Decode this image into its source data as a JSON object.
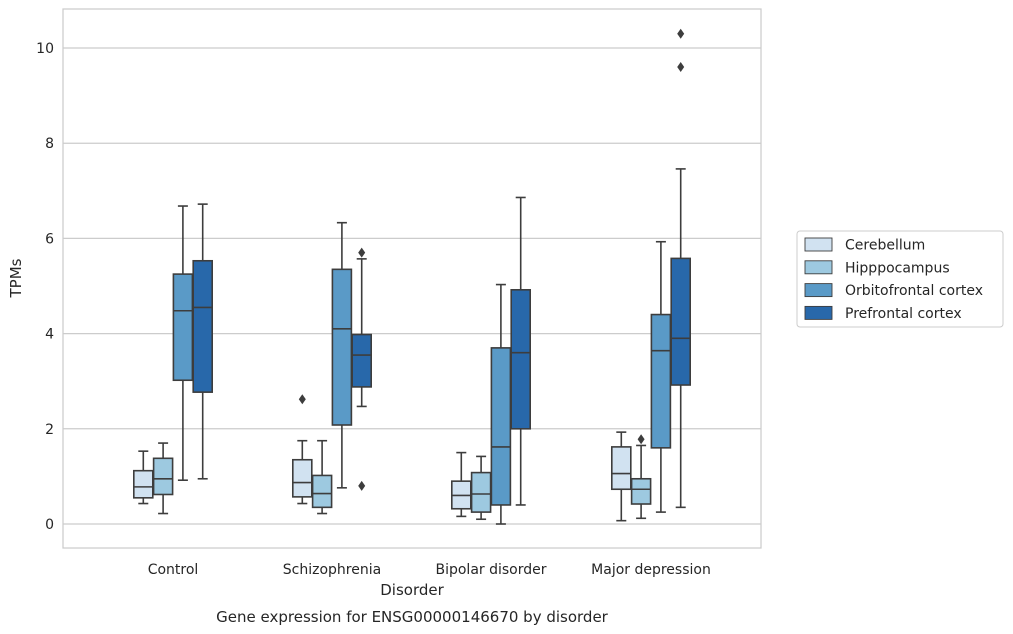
{
  "caption": "Gene expression for ENSG00000146670 by disorder",
  "chart_data": {
    "type": "box",
    "title": "",
    "xlabel": "Disorder",
    "ylabel": "TPMs",
    "ylim": [
      -0.5,
      10.8
    ],
    "yticks": [
      "0",
      "2",
      "4",
      "6",
      "8",
      "10"
    ],
    "grid": "horizontal",
    "legend_position": "right",
    "categories": [
      "Control",
      "Schizophrenia",
      "Bipolar disorder",
      "Major depression"
    ],
    "series": [
      {
        "name": "Cerebellum",
        "color": "#d1e2f1",
        "boxes": [
          {
            "whislo": 0.43,
            "q1": 0.55,
            "med": 0.78,
            "q3": 1.12,
            "whishi": 1.53,
            "fliers": []
          },
          {
            "whislo": 0.43,
            "q1": 0.57,
            "med": 0.87,
            "q3": 1.35,
            "whishi": 1.75,
            "fliers": [
              2.62
            ]
          },
          {
            "whislo": 0.16,
            "q1": 0.32,
            "med": 0.6,
            "q3": 0.9,
            "whishi": 1.5,
            "fliers": []
          },
          {
            "whislo": 0.07,
            "q1": 0.73,
            "med": 1.06,
            "q3": 1.62,
            "whishi": 1.93,
            "fliers": []
          }
        ]
      },
      {
        "name": "Hipppocampus",
        "color": "#9dc9e0",
        "boxes": [
          {
            "whislo": 0.22,
            "q1": 0.62,
            "med": 0.95,
            "q3": 1.38,
            "whishi": 1.7,
            "fliers": []
          },
          {
            "whislo": 0.22,
            "q1": 0.35,
            "med": 0.64,
            "q3": 1.02,
            "whishi": 1.75,
            "fliers": []
          },
          {
            "whislo": 0.1,
            "q1": 0.25,
            "med": 0.63,
            "q3": 1.08,
            "whishi": 1.42,
            "fliers": []
          },
          {
            "whislo": 0.12,
            "q1": 0.42,
            "med": 0.73,
            "q3": 0.95,
            "whishi": 1.65,
            "fliers": [
              1.78
            ]
          }
        ]
      },
      {
        "name": "Orbitofrontal cortex",
        "color": "#5a9ac7",
        "boxes": [
          {
            "whislo": 0.92,
            "q1": 3.02,
            "med": 4.48,
            "q3": 5.25,
            "whishi": 6.68,
            "fliers": []
          },
          {
            "whislo": 0.76,
            "q1": 2.08,
            "med": 4.1,
            "q3": 5.35,
            "whishi": 6.33,
            "fliers": []
          },
          {
            "whislo": 0.0,
            "q1": 0.4,
            "med": 1.62,
            "q3": 3.7,
            "whishi": 5.03,
            "fliers": []
          },
          {
            "whislo": 0.25,
            "q1": 1.6,
            "med": 3.64,
            "q3": 4.4,
            "whishi": 5.93,
            "fliers": []
          }
        ]
      },
      {
        "name": "Prefrontal cortex",
        "color": "#2868aa",
        "boxes": [
          {
            "whislo": 0.95,
            "q1": 2.77,
            "med": 4.55,
            "q3": 5.53,
            "whishi": 6.72,
            "fliers": []
          },
          {
            "whislo": 2.47,
            "q1": 2.88,
            "med": 3.55,
            "q3": 3.98,
            "whishi": 5.57,
            "fliers": [
              5.7,
              0.8
            ]
          },
          {
            "whislo": 0.4,
            "q1": 2.0,
            "med": 3.6,
            "q3": 4.92,
            "whishi": 6.86,
            "fliers": []
          },
          {
            "whislo": 0.35,
            "q1": 2.92,
            "med": 3.9,
            "q3": 5.58,
            "whishi": 7.46,
            "fliers": [
              10.3,
              9.6
            ]
          }
        ]
      }
    ]
  }
}
